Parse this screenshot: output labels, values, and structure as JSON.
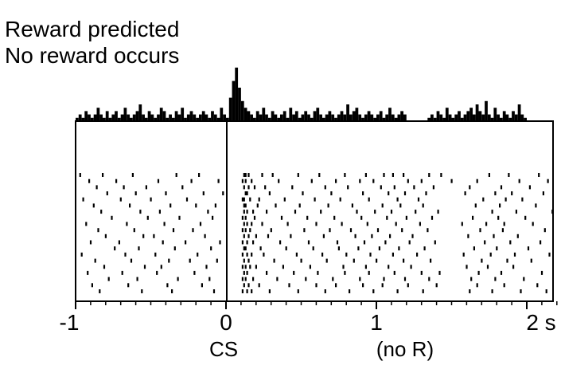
{
  "chart_data": {
    "type": "raster",
    "title_lines": [
      "Reward predicted",
      "No reward occurs"
    ],
    "x_range": [
      -1,
      2.2
    ],
    "x_ticks": [
      {
        "value": -1,
        "label": "-1"
      },
      {
        "value": 0,
        "label": "0"
      },
      {
        "value": 1,
        "label": "1"
      },
      {
        "value": 2,
        "label": "2 s"
      }
    ],
    "event_labels": [
      {
        "value": 0,
        "label": "CS"
      },
      {
        "value": 1,
        "label": "(no R)"
      }
    ],
    "event_line_at": 0,
    "histogram": {
      "bin_start": -1.0,
      "bin_width": 0.02,
      "counts": [
        1,
        2,
        1,
        3,
        2,
        1,
        2,
        4,
        2,
        1,
        3,
        1,
        2,
        3,
        1,
        2,
        4,
        2,
        1,
        2,
        3,
        5,
        2,
        1,
        3,
        2,
        1,
        2,
        4,
        3,
        1,
        2,
        1,
        3,
        2,
        4,
        1,
        2,
        3,
        2,
        1,
        2,
        3,
        2,
        1,
        3,
        2,
        1,
        4,
        2,
        1,
        7,
        12,
        16,
        10,
        6,
        4,
        3,
        2,
        1,
        3,
        2,
        4,
        2,
        1,
        3,
        2,
        1,
        2,
        3,
        1,
        4,
        2,
        3,
        1,
        2,
        3,
        2,
        1,
        3,
        4,
        2,
        1,
        2,
        3,
        2,
        1,
        2,
        3,
        2,
        5,
        2,
        3,
        4,
        2,
        1,
        2,
        3,
        2,
        1,
        2,
        3,
        1,
        2,
        4,
        2,
        1,
        2,
        3,
        2,
        0,
        0,
        0,
        0,
        0,
        0,
        0,
        1,
        2,
        1,
        3,
        2,
        1,
        4,
        2,
        1,
        2,
        3,
        1,
        2,
        3,
        4,
        2,
        5,
        3,
        2,
        6,
        2,
        1,
        4,
        2,
        1,
        3,
        2,
        1,
        3,
        2,
        5,
        2,
        1
      ]
    },
    "raster": {
      "trials": 20,
      "spike_times": [
        [
          -0.97,
          -0.82,
          -0.62,
          -0.33,
          -0.18,
          0.12,
          0.13,
          0.15,
          0.24,
          0.31,
          0.48,
          0.62,
          0.79,
          0.93,
          1.05,
          1.11,
          1.18,
          1.35,
          1.43,
          1.75,
          1.88,
          2.08
        ],
        [
          -0.91,
          -0.73,
          -0.45,
          -0.23,
          -0.05,
          0.11,
          0.13,
          0.17,
          0.35,
          0.57,
          0.73,
          0.89,
          0.98,
          1.21,
          1.3,
          1.5,
          1.67,
          1.95,
          2.14
        ],
        [
          -0.86,
          -0.68,
          -0.53,
          -0.29,
          0.12,
          0.15,
          0.19,
          0.26,
          0.44,
          0.66,
          0.81,
          1.03,
          1.12,
          1.25,
          1.38,
          1.62,
          1.83,
          2.02
        ],
        [
          -0.79,
          -0.6,
          -0.4,
          -0.15,
          -0.02,
          0.13,
          0.14,
          0.29,
          0.51,
          0.7,
          0.91,
          1.08,
          1.19,
          1.33,
          1.59,
          1.79,
          1.9,
          2.11
        ],
        [
          -0.95,
          -0.7,
          -0.5,
          -0.26,
          0.11,
          0.12,
          0.16,
          0.22,
          0.39,
          0.59,
          0.76,
          0.95,
          1.14,
          1.28,
          1.71,
          1.86,
          1.97
        ],
        [
          -0.88,
          -0.64,
          -0.37,
          -0.2,
          -0.07,
          0.12,
          0.13,
          0.21,
          0.33,
          0.49,
          0.68,
          0.84,
          1.04,
          1.16,
          1.31,
          1.66,
          1.82,
          2.06
        ],
        [
          -0.83,
          -0.57,
          -0.44,
          -0.12,
          0.12,
          0.14,
          0.18,
          0.27,
          0.46,
          0.63,
          0.87,
          0.99,
          1.1,
          1.26,
          1.41,
          1.77,
          1.93,
          2.17
        ],
        [
          -0.76,
          -0.52,
          -0.31,
          -0.09,
          0.11,
          0.13,
          0.19,
          0.37,
          0.54,
          0.72,
          0.9,
          1.07,
          1.2,
          1.37,
          1.64,
          1.81,
          1.99
        ],
        [
          -0.93,
          -0.66,
          -0.41,
          -0.17,
          0.12,
          0.14,
          0.17,
          0.24,
          0.41,
          0.6,
          0.77,
          0.94,
          1.13,
          1.29,
          1.57,
          1.73,
          1.85,
          2.04
        ],
        [
          -0.85,
          -0.61,
          -0.35,
          -0.22,
          0.11,
          0.13,
          0.16,
          0.3,
          0.52,
          0.69,
          0.83,
          1.01,
          1.17,
          1.34,
          1.69,
          1.84,
          2.12
        ],
        [
          -0.8,
          -0.55,
          -0.48,
          -0.14,
          0.12,
          0.15,
          0.2,
          0.28,
          0.43,
          0.65,
          0.86,
          0.97,
          1.09,
          1.24,
          1.61,
          1.78,
          1.94
        ],
        [
          -0.9,
          -0.71,
          -0.42,
          -0.27,
          -0.04,
          0.11,
          0.14,
          0.18,
          0.36,
          0.55,
          0.74,
          0.92,
          1.06,
          1.22,
          1.39,
          1.72,
          1.89,
          2.09
        ],
        [
          -0.74,
          -0.58,
          -0.34,
          -0.1,
          0.12,
          0.13,
          0.23,
          0.4,
          0.58,
          0.75,
          0.88,
          1.02,
          1.15,
          1.32,
          1.65,
          1.8,
          2.01
        ],
        [
          -0.96,
          -0.67,
          -0.47,
          -0.19,
          0.11,
          0.14,
          0.17,
          0.25,
          0.47,
          0.64,
          0.8,
          0.96,
          1.11,
          1.27,
          1.58,
          1.76,
          1.92,
          2.15
        ],
        [
          -0.87,
          -0.63,
          -0.38,
          -0.24,
          -0.06,
          0.12,
          0.15,
          0.32,
          0.5,
          0.67,
          0.85,
          1.0,
          1.18,
          1.36,
          1.7,
          1.87,
          2.03
        ],
        [
          -0.81,
          -0.54,
          -0.43,
          -0.13,
          0.11,
          0.13,
          0.16,
          0.2,
          0.38,
          0.56,
          0.78,
          0.93,
          1.08,
          1.23,
          1.6,
          1.74,
          1.91
        ],
        [
          -0.92,
          -0.69,
          -0.46,
          -0.21,
          0.12,
          0.14,
          0.27,
          0.45,
          0.61,
          0.79,
          0.95,
          1.12,
          1.3,
          1.42,
          1.68,
          1.83,
          2.1
        ],
        [
          -0.78,
          -0.59,
          -0.32,
          -0.11,
          0.11,
          0.13,
          0.18,
          0.34,
          0.53,
          0.71,
          0.89,
          1.05,
          1.19,
          1.35,
          1.63,
          1.79,
          1.98
        ],
        [
          -0.89,
          -0.65,
          -0.39,
          -0.16,
          0.12,
          0.15,
          0.22,
          0.42,
          0.6,
          0.73,
          0.91,
          1.04,
          1.21,
          1.4,
          1.67,
          1.85,
          2.07
        ],
        [
          -0.84,
          -0.56,
          -0.36,
          -0.08,
          0.11,
          0.14,
          0.17,
          0.29,
          0.48,
          0.66,
          0.82,
          0.98,
          1.14,
          1.31,
          1.62,
          1.77,
          1.96,
          2.13
        ]
      ]
    }
  }
}
